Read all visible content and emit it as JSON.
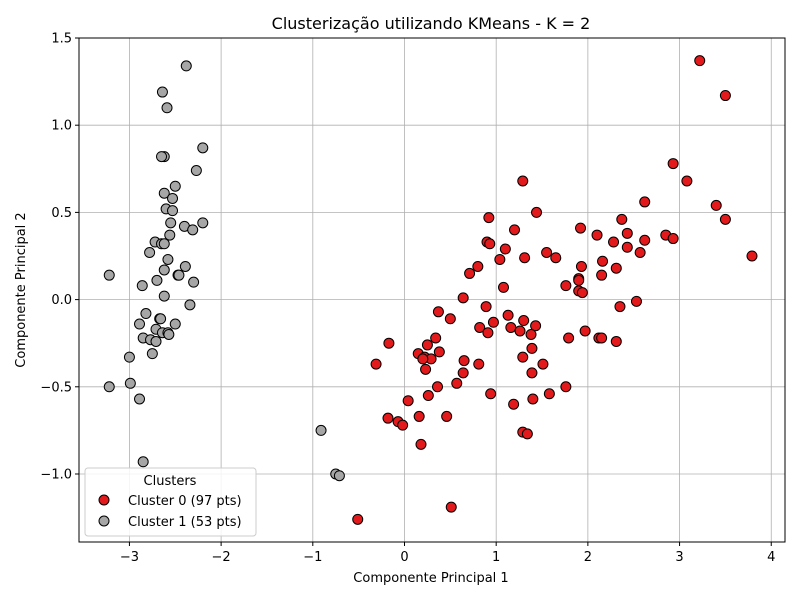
{
  "chart_data": {
    "type": "scatter",
    "title": "Clusterização utilizando KMeans - K = 2",
    "xlabel": "Componente Principal 1",
    "ylabel": "Componente Principal 2",
    "xlim": [
      -3.55,
      4.15
    ],
    "ylim": [
      -1.39,
      1.5
    ],
    "xticks": [
      -3,
      -2,
      -1,
      0,
      1,
      2,
      3,
      4
    ],
    "yticks": [
      -1.0,
      -0.5,
      0.0,
      0.5,
      1.0,
      1.5
    ],
    "xtick_labels": [
      "−3",
      "−2",
      "−1",
      "0",
      "1",
      "2",
      "3",
      "4"
    ],
    "ytick_labels": [
      "−1.0",
      "−0.5",
      "0.0",
      "0.5",
      "1.0",
      "1.5"
    ],
    "grid": true,
    "legend": {
      "title": "Clusters",
      "placement": "lower-left"
    },
    "series": [
      {
        "name": "Cluster 0 (97 pts)",
        "color": "#e31a1c",
        "points": [
          [
            3.22,
            1.37
          ],
          [
            3.5,
            1.17
          ],
          [
            2.93,
            0.78
          ],
          [
            3.08,
            0.68
          ],
          [
            2.62,
            0.56
          ],
          [
            3.4,
            0.54
          ],
          [
            3.5,
            0.46
          ],
          [
            2.85,
            0.37
          ],
          [
            2.93,
            0.35
          ],
          [
            3.79,
            0.25
          ],
          [
            2.37,
            0.46
          ],
          [
            2.43,
            0.38
          ],
          [
            2.1,
            0.37
          ],
          [
            2.28,
            0.33
          ],
          [
            2.62,
            0.34
          ],
          [
            2.43,
            0.3
          ],
          [
            2.57,
            0.27
          ],
          [
            2.16,
            0.22
          ],
          [
            2.31,
            0.18
          ],
          [
            2.15,
            0.14
          ],
          [
            1.92,
            0.41
          ],
          [
            1.93,
            0.19
          ],
          [
            1.9,
            0.12
          ],
          [
            1.9,
            0.11
          ],
          [
            1.76,
            0.08
          ],
          [
            1.9,
            0.05
          ],
          [
            1.94,
            0.04
          ],
          [
            2.35,
            -0.04
          ],
          [
            2.53,
            -0.01
          ],
          [
            1.97,
            -0.18
          ],
          [
            1.79,
            -0.22
          ],
          [
            2.12,
            -0.22
          ],
          [
            2.15,
            -0.22
          ],
          [
            2.31,
            -0.24
          ],
          [
            1.76,
            -0.5
          ],
          [
            1.29,
            0.68
          ],
          [
            1.44,
            0.5
          ],
          [
            1.2,
            0.4
          ],
          [
            0.92,
            0.47
          ],
          [
            0.9,
            0.33
          ],
          [
            0.93,
            0.32
          ],
          [
            1.1,
            0.29
          ],
          [
            1.31,
            0.24
          ],
          [
            1.04,
            0.23
          ],
          [
            1.55,
            0.27
          ],
          [
            1.65,
            0.24
          ],
          [
            0.8,
            0.19
          ],
          [
            0.71,
            0.15
          ],
          [
            1.08,
            0.07
          ],
          [
            0.64,
            0.01
          ],
          [
            0.89,
            -0.04
          ],
          [
            1.13,
            -0.09
          ],
          [
            0.97,
            -0.13
          ],
          [
            1.3,
            -0.12
          ],
          [
            0.82,
            -0.16
          ],
          [
            1.16,
            -0.16
          ],
          [
            1.26,
            -0.18
          ],
          [
            0.91,
            -0.19
          ],
          [
            1.43,
            -0.15
          ],
          [
            1.38,
            -0.2
          ],
          [
            1.39,
            -0.28
          ],
          [
            1.29,
            -0.33
          ],
          [
            1.51,
            -0.37
          ],
          [
            1.39,
            -0.42
          ],
          [
            0.37,
            -0.07
          ],
          [
            0.5,
            -0.11
          ],
          [
            0.34,
            -0.22
          ],
          [
            0.25,
            -0.26
          ],
          [
            0.15,
            -0.31
          ],
          [
            0.22,
            -0.33
          ],
          [
            0.29,
            -0.34
          ],
          [
            0.38,
            -0.3
          ],
          [
            0.65,
            -0.35
          ],
          [
            0.81,
            -0.37
          ],
          [
            0.64,
            -0.42
          ],
          [
            0.23,
            -0.4
          ],
          [
            0.57,
            -0.48
          ],
          [
            0.36,
            -0.5
          ],
          [
            0.26,
            -0.55
          ],
          [
            0.94,
            -0.54
          ],
          [
            1.58,
            -0.54
          ],
          [
            1.4,
            -0.57
          ],
          [
            1.19,
            -0.6
          ],
          [
            0.04,
            -0.58
          ],
          [
            0.46,
            -0.67
          ],
          [
            0.16,
            -0.67
          ],
          [
            -0.18,
            -0.68
          ],
          [
            -0.07,
            -0.7
          ],
          [
            -0.02,
            -0.72
          ],
          [
            1.29,
            -0.76
          ],
          [
            1.34,
            -0.77
          ],
          [
            0.18,
            -0.83
          ],
          [
            -0.17,
            -0.25
          ],
          [
            -0.31,
            -0.37
          ],
          [
            -0.51,
            -1.26
          ],
          [
            0.51,
            -1.19
          ],
          [
            0.2,
            -0.34
          ]
        ]
      },
      {
        "name": "Cluster 1 (53 pts)",
        "color": "#a6a6a6",
        "points": [
          [
            -2.38,
            1.34
          ],
          [
            -2.64,
            1.19
          ],
          [
            -2.59,
            1.1
          ],
          [
            -2.2,
            0.87
          ],
          [
            -2.62,
            0.82
          ],
          [
            -2.65,
            0.82
          ],
          [
            -2.27,
            0.74
          ],
          [
            -2.5,
            0.65
          ],
          [
            -2.62,
            0.61
          ],
          [
            -2.53,
            0.58
          ],
          [
            -2.6,
            0.52
          ],
          [
            -2.53,
            0.51
          ],
          [
            -2.4,
            0.42
          ],
          [
            -2.31,
            0.4
          ],
          [
            -2.55,
            0.44
          ],
          [
            -2.2,
            0.44
          ],
          [
            -2.56,
            0.37
          ],
          [
            -2.72,
            0.33
          ],
          [
            -2.65,
            0.32
          ],
          [
            -2.62,
            0.32
          ],
          [
            -2.78,
            0.27
          ],
          [
            -2.58,
            0.23
          ],
          [
            -2.39,
            0.19
          ],
          [
            -2.62,
            0.17
          ],
          [
            -2.47,
            0.14
          ],
          [
            -2.7,
            0.11
          ],
          [
            -2.3,
            0.1
          ],
          [
            -3.22,
            0.14
          ],
          [
            -2.86,
            0.08
          ],
          [
            -2.62,
            0.02
          ],
          [
            -2.34,
            -0.03
          ],
          [
            -2.82,
            -0.08
          ],
          [
            -2.67,
            -0.11
          ],
          [
            -2.66,
            -0.11
          ],
          [
            -2.89,
            -0.14
          ],
          [
            -2.5,
            -0.14
          ],
          [
            -2.71,
            -0.17
          ],
          [
            -2.64,
            -0.19
          ],
          [
            -2.58,
            -0.19
          ],
          [
            -2.85,
            -0.22
          ],
          [
            -2.77,
            -0.23
          ],
          [
            -2.71,
            -0.24
          ],
          [
            -2.75,
            -0.31
          ],
          [
            -3.0,
            -0.33
          ],
          [
            -2.99,
            -0.48
          ],
          [
            -3.22,
            -0.5
          ],
          [
            -2.89,
            -0.57
          ],
          [
            -0.91,
            -0.75
          ],
          [
            -0.75,
            -1.0
          ],
          [
            -0.71,
            -1.01
          ],
          [
            -2.85,
            -0.93
          ],
          [
            -2.46,
            0.14
          ],
          [
            -2.57,
            -0.2
          ]
        ]
      }
    ]
  }
}
